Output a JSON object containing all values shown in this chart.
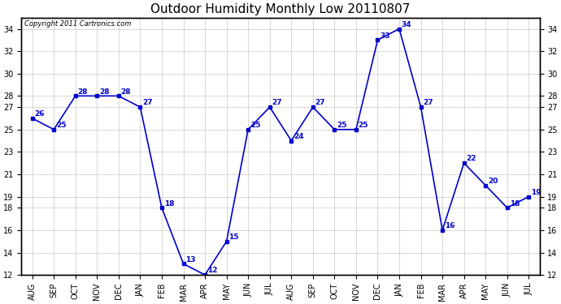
{
  "title": "Outdoor Humidity Monthly Low 20110807",
  "copyright": "Copyright 2011 Cartronics.com",
  "months": [
    "AUG",
    "SEP",
    "OCT",
    "NOV",
    "DEC",
    "JAN",
    "FEB",
    "MAR",
    "APR",
    "MAY",
    "JUN",
    "JUL",
    "AUG",
    "SEP",
    "OCT",
    "NOV",
    "DEC",
    "JAN",
    "FEB",
    "MAR",
    "APR",
    "MAY",
    "JUN",
    "JUL"
  ],
  "values": [
    26,
    25,
    28,
    28,
    28,
    27,
    18,
    13,
    12,
    15,
    25,
    27,
    24,
    27,
    25,
    25,
    33,
    34,
    27,
    16,
    22,
    20,
    18,
    19
  ],
  "line_color": "#0000cc",
  "marker": "s",
  "marker_size": 3,
  "ylim": [
    12,
    35
  ],
  "yticks": [
    12,
    14,
    16,
    18,
    19,
    21,
    23,
    25,
    27,
    28,
    30,
    32,
    34
  ],
  "grid_color": "#c8c8c8",
  "background_color": "#ffffff",
  "title_fontsize": 11,
  "label_fontsize": 7,
  "data_label_fontsize": 6.5
}
